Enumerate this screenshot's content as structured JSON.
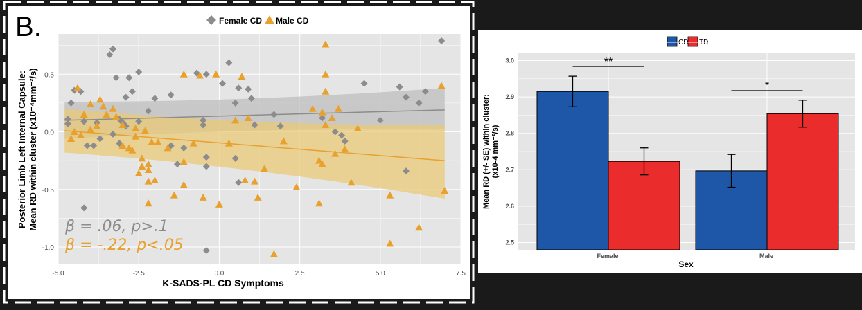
{
  "colors": {
    "background": "#1a1a1a",
    "panel_bg": "#ffffff",
    "plot_bg": "#e5e5e5",
    "grid": "#ffffff",
    "female": "#8c8c8c",
    "male": "#e8a12c",
    "female_band": "#bdbdbd",
    "male_band": "#e9c877",
    "cd": "#1f57a8",
    "td": "#ea2c2c",
    "female_stat": "#8c8c8c",
    "male_stat": "#e8a12c"
  },
  "panel_b": {
    "label": "B.",
    "legend": [
      {
        "name": "Female CD",
        "marker": "diamond",
        "color": "#8c8c8c"
      },
      {
        "name": "Male CD",
        "marker": "triangle",
        "color": "#e8a12c"
      }
    ],
    "stat_female": "β = .06, p>.1",
    "stat_male": "β = -.22, p<.05"
  },
  "chart_data": [
    {
      "type": "scatter",
      "title": "",
      "xlabel": "K-SADS-PL CD Symptoms",
      "ylabel_lines": [
        "Posterior Limb Left Internal Capsule:",
        "Mean RD within cluster (x10⁻⁴mm⁻²/s)"
      ],
      "xlim": [
        -5.0,
        7.5
      ],
      "ylim": [
        -1.15,
        0.85
      ],
      "x_ticks": [
        -5.0,
        -2.5,
        0.0,
        2.5,
        5.0,
        7.5
      ],
      "x_tick_labels": [
        "-5.0",
        "-2.5",
        "0.0",
        "2.5",
        "5.0",
        "7.5"
      ],
      "y_ticks": [
        -1.0,
        -0.5,
        0.0,
        0.5
      ],
      "y_tick_labels": [
        "-1.0",
        "-0.5",
        "0.0",
        "0.5"
      ],
      "grid": true,
      "legend": "top",
      "series": [
        {
          "name": "Female CD",
          "marker": "diamond",
          "points": [
            [
              -3.3,
              0.72
            ],
            [
              -3.4,
              0.67
            ],
            [
              -3.2,
              0.47
            ],
            [
              -2.5,
              0.52
            ],
            [
              -2.8,
              0.47
            ],
            [
              -2.9,
              0.3
            ],
            [
              -2.7,
              0.35
            ],
            [
              -4.5,
              0.36
            ],
            [
              -4.3,
              0.35
            ],
            [
              -4.6,
              0.25
            ],
            [
              -4.7,
              0.07
            ],
            [
              -4.7,
              0.11
            ],
            [
              -4.2,
              0.09
            ],
            [
              -3.8,
              0.08
            ],
            [
              -3.1,
              0.11
            ],
            [
              -3.0,
              0.08
            ],
            [
              -2.9,
              0.05
            ],
            [
              -3.3,
              -0.02
            ],
            [
              -3.7,
              -0.06
            ],
            [
              -3.9,
              -0.12
            ],
            [
              -4.1,
              -0.12
            ],
            [
              -3.1,
              -0.1
            ],
            [
              -2.5,
              0.09
            ],
            [
              -2.2,
              0.18
            ],
            [
              -2.0,
              0.29
            ],
            [
              -1.5,
              -0.12
            ],
            [
              -1.3,
              -0.28
            ],
            [
              -1.5,
              0.32
            ],
            [
              -1.1,
              -0.14
            ],
            [
              -0.7,
              0.51
            ],
            [
              -0.4,
              0.5
            ],
            [
              -0.5,
              0.1
            ],
            [
              -0.5,
              0.06
            ],
            [
              -0.4,
              -0.22
            ],
            [
              -0.4,
              -0.3
            ],
            [
              0.1,
              0.42
            ],
            [
              0.3,
              0.6
            ],
            [
              0.5,
              0.25
            ],
            [
              0.6,
              0.38
            ],
            [
              0.9,
              0.37
            ],
            [
              0.5,
              -0.23
            ],
            [
              0.6,
              -0.44
            ],
            [
              1.0,
              0.29
            ],
            [
              1.1,
              0.06
            ],
            [
              1.7,
              0.15
            ],
            [
              1.9,
              0.05
            ],
            [
              3.2,
              0.12
            ],
            [
              3.6,
              0.0
            ],
            [
              3.8,
              -0.03
            ],
            [
              3.9,
              -0.08
            ],
            [
              4.5,
              0.42
            ],
            [
              5.0,
              0.1
            ],
            [
              5.6,
              0.39
            ],
            [
              5.8,
              0.3
            ],
            [
              6.2,
              0.25
            ],
            [
              6.4,
              0.35
            ],
            [
              5.8,
              -0.34
            ],
            [
              6.9,
              0.79
            ],
            [
              -4.2,
              -0.66
            ],
            [
              -0.4,
              -1.03
            ]
          ]
        },
        {
          "name": "Male CD",
          "marker": "triangle",
          "points": [
            [
              -4.4,
              0.38
            ],
            [
              -4.2,
              0.15
            ],
            [
              -4.0,
              0.24
            ],
            [
              -3.7,
              0.28
            ],
            [
              -3.6,
              0.22
            ],
            [
              -4.5,
              0.0
            ],
            [
              -4.6,
              -0.06
            ],
            [
              -4.3,
              -0.03
            ],
            [
              -4.0,
              0.02
            ],
            [
              -3.8,
              0.05
            ],
            [
              -3.5,
              0.15
            ],
            [
              -3.3,
              0.2
            ],
            [
              -3.2,
              0.13
            ],
            [
              -3.0,
              0.06
            ],
            [
              -3.0,
              -0.12
            ],
            [
              -2.8,
              -0.14
            ],
            [
              -2.7,
              -0.16
            ],
            [
              -2.4,
              -0.23
            ],
            [
              -2.4,
              -0.3
            ],
            [
              -2.6,
              0.03
            ],
            [
              -2.6,
              -0.04
            ],
            [
              -2.3,
              0.01
            ],
            [
              -2.1,
              -0.09
            ],
            [
              -1.9,
              -0.09
            ],
            [
              -2.0,
              -0.42
            ],
            [
              -2.2,
              -0.28
            ],
            [
              -2.2,
              -0.33
            ],
            [
              -2.2,
              -0.43
            ],
            [
              -2.5,
              -0.36
            ],
            [
              -2.2,
              -0.62
            ],
            [
              -1.4,
              -0.55
            ],
            [
              -1.6,
              -0.14
            ],
            [
              -1.1,
              -0.26
            ],
            [
              -1.1,
              -0.46
            ],
            [
              -1.1,
              0.5
            ],
            [
              -0.8,
              -0.1
            ],
            [
              -0.6,
              0.49
            ],
            [
              -0.1,
              0.5
            ],
            [
              -0.5,
              -0.57
            ],
            [
              0.0,
              -0.63
            ],
            [
              0.3,
              -0.1
            ],
            [
              0.5,
              0.1
            ],
            [
              0.7,
              0.48
            ],
            [
              0.9,
              0.12
            ],
            [
              1.2,
              -0.57
            ],
            [
              1.4,
              -0.32
            ],
            [
              0.8,
              -0.42
            ],
            [
              1.1,
              -0.43
            ],
            [
              2.0,
              -0.08
            ],
            [
              2.4,
              -0.48
            ],
            [
              2.9,
              0.2
            ],
            [
              3.2,
              0.17
            ],
            [
              3.3,
              0.06
            ],
            [
              3.3,
              0.5
            ],
            [
              3.5,
              0.12
            ],
            [
              3.7,
              0.2
            ],
            [
              3.6,
              -0.19
            ],
            [
              3.2,
              -0.28
            ],
            [
              3.1,
              -0.25
            ],
            [
              3.3,
              0.76
            ],
            [
              3.1,
              -0.62
            ],
            [
              3.9,
              -0.15
            ],
            [
              4.1,
              -0.44
            ],
            [
              4.3,
              0.03
            ],
            [
              3.3,
              0.35
            ],
            [
              5.3,
              -0.55
            ],
            [
              5.3,
              -0.97
            ],
            [
              6.2,
              -0.83
            ],
            [
              6.9,
              0.4
            ],
            [
              7.0,
              -0.51
            ],
            [
              1.7,
              -1.06
            ]
          ],
          "fit_note": "linear fit with confidence band"
        }
      ],
      "fits": [
        {
          "series": "Female CD",
          "x": [
            -4.8,
            7.0
          ],
          "y": [
            0.1,
            0.19
          ],
          "band": [
            [
              -0.06,
              0.26
            ],
            [
              0.02,
              0.38
            ]
          ]
        },
        {
          "series": "Male CD",
          "x": [
            -4.8,
            7.0
          ],
          "y": [
            0.01,
            -0.25
          ],
          "band": [
            [
              -0.18,
              0.2
            ],
            [
              -0.58,
              0.06
            ]
          ]
        }
      ]
    },
    {
      "type": "bar",
      "title": "",
      "xlabel": "Sex",
      "ylabel_lines": [
        "Mean RD (+/- SE) within cluster:",
        "(x10-4 mm⁻²/s)"
      ],
      "categories": [
        "Female",
        "Male"
      ],
      "ylim": [
        2.48,
        3.02
      ],
      "y_ticks": [
        2.5,
        2.6,
        2.7,
        2.8,
        2.9,
        3.0
      ],
      "y_tick_labels": [
        "2.5",
        "2.6",
        "2.7",
        "2.8",
        "2.9",
        "3.0"
      ],
      "grid": true,
      "legend": "top",
      "series": [
        {
          "name": "CD",
          "values": [
            2.915,
            2.697
          ],
          "se": [
            0.042,
            0.045
          ]
        },
        {
          "name": "TD",
          "values": [
            2.723,
            2.854
          ],
          "se": [
            0.037,
            0.037
          ]
        }
      ],
      "significance": [
        {
          "category": "Female",
          "label": "**"
        },
        {
          "category": "Male",
          "label": "*"
        }
      ]
    }
  ]
}
